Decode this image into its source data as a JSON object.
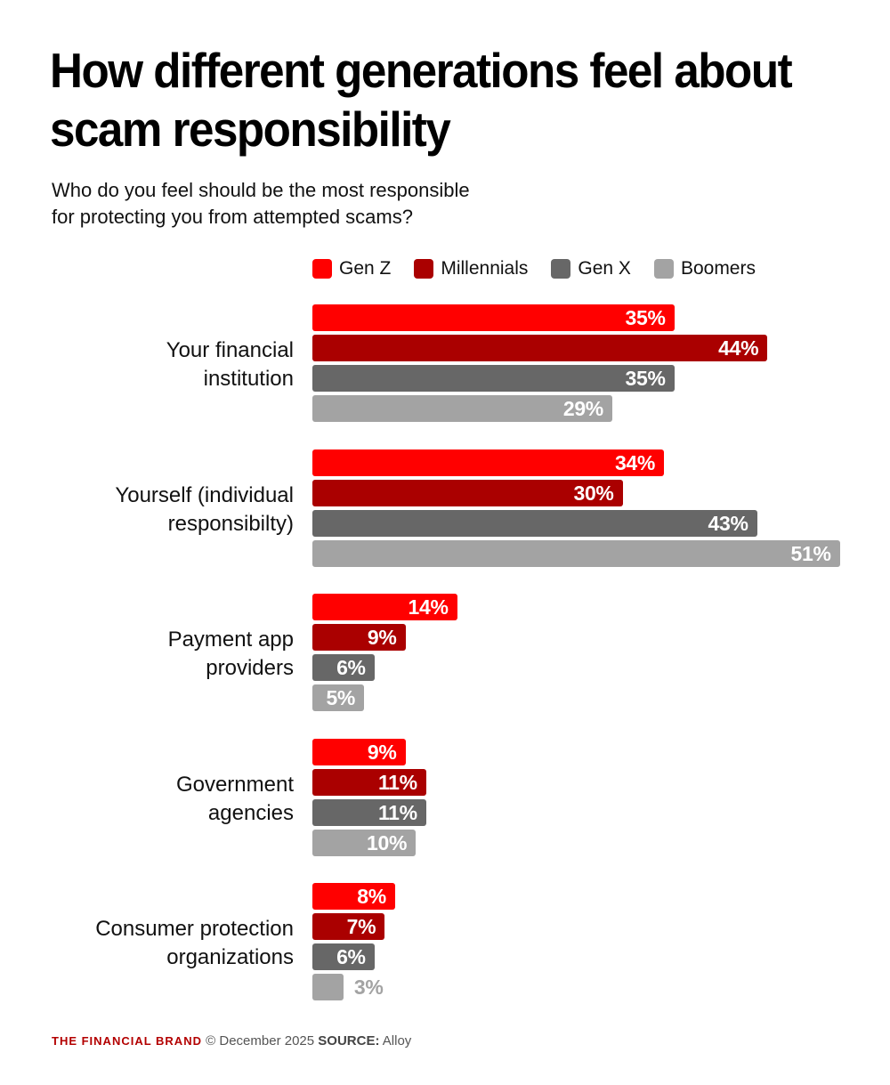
{
  "header": {
    "title": "How different generations feel about scam responsibility",
    "subtitle_line1": "Who do you feel should be the most responsible",
    "subtitle_line2": "for protecting you from attempted scams?"
  },
  "legend": [
    {
      "label": "Gen Z",
      "color": "#ff0000"
    },
    {
      "label": "Millennials",
      "color": "#aa0000"
    },
    {
      "label": "Gen X",
      "color": "#676767"
    },
    {
      "label": "Boomers",
      "color": "#a3a3a3"
    }
  ],
  "footer": {
    "brand": "THE FINANCIAL BRAND",
    "date": "© December 2025",
    "source_label": "SOURCE:",
    "source": "Alloy"
  },
  "chart_data": {
    "type": "bar",
    "orientation": "horizontal",
    "title": "How different generations feel about scam responsibility",
    "subtitle": "Who do you feel should be the most responsible for protecting you from attempted scams?",
    "xlabel": "",
    "ylabel": "",
    "legend_position": "top",
    "grid": false,
    "value_format": "percent",
    "categories": [
      "Your financial institution",
      "Yourself (individual responsibilty)",
      "Payment app providers",
      "Government agencies",
      "Consumer protection organizations"
    ],
    "category_lines": [
      [
        "Your financial",
        "institution"
      ],
      [
        "Yourself (individual",
        "responsibilty)"
      ],
      [
        "Payment app",
        "providers"
      ],
      [
        "Government",
        "agencies"
      ],
      [
        "Consumer protection",
        "organizations"
      ]
    ],
    "series": [
      {
        "name": "Gen Z",
        "color": "#ff0000",
        "values": [
          35,
          34,
          14,
          9,
          8
        ]
      },
      {
        "name": "Millennials",
        "color": "#aa0000",
        "values": [
          44,
          30,
          9,
          11,
          7
        ]
      },
      {
        "name": "Gen X",
        "color": "#676767",
        "values": [
          35,
          43,
          6,
          11,
          6
        ]
      },
      {
        "name": "Boomers",
        "color": "#a3a3a3",
        "values": [
          29,
          51,
          5,
          10,
          3
        ]
      }
    ],
    "value_labels": [
      [
        "35%",
        "44%",
        "35%",
        "29%"
      ],
      [
        "34%",
        "30%",
        "43%",
        "51%"
      ],
      [
        "14%",
        "9%",
        "6%",
        "5%"
      ],
      [
        "9%",
        "11%",
        "11%",
        "10%"
      ],
      [
        "8%",
        "7%",
        "6%",
        "3%"
      ]
    ],
    "xlim": [
      0,
      51
    ]
  }
}
